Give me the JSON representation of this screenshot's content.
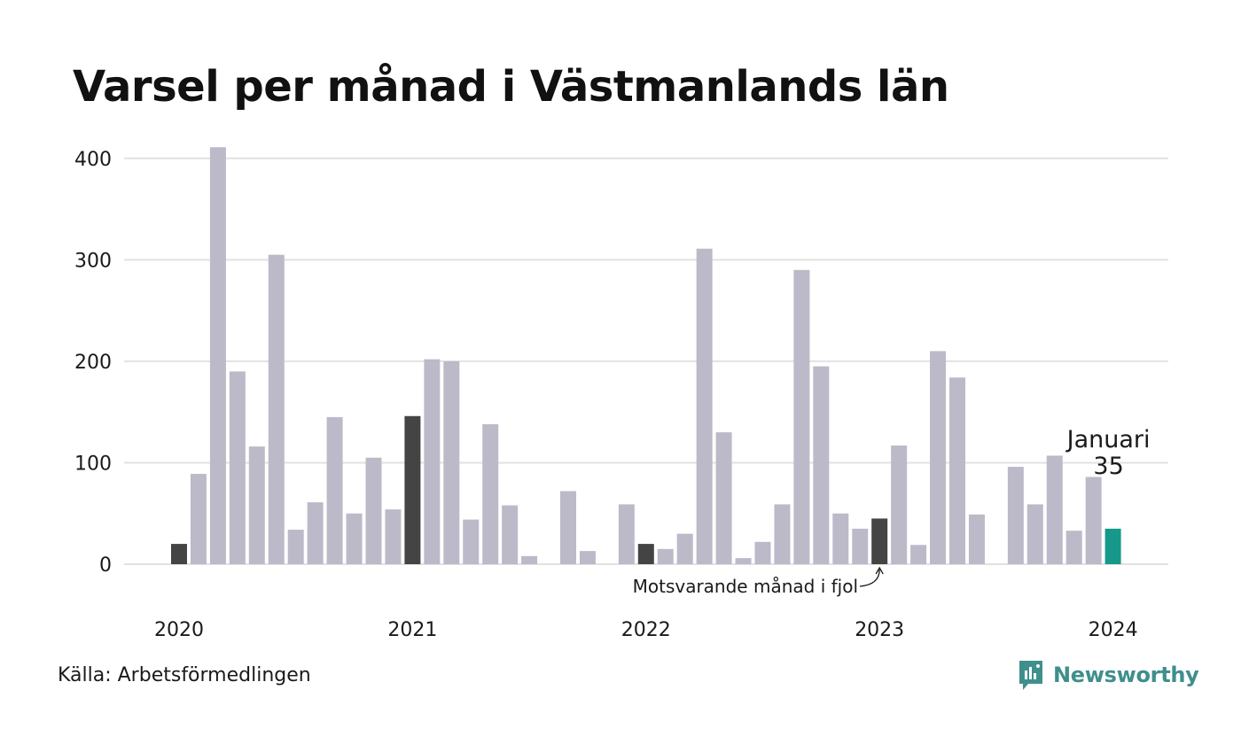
{
  "title": "Varsel per månad i Västmanlands län",
  "source": "Källa: Arbetsförmedlingen",
  "brand": {
    "name": "Newsworthy",
    "icon": "newsworthy-logo-icon",
    "color": "#3f8f8c"
  },
  "colors": {
    "bar": "#bcbac8",
    "highlight": "#444444",
    "current": "#16998a",
    "grid": "#e2e2e2",
    "text": "#1a1a1a"
  },
  "chart_data": {
    "type": "bar",
    "title": "Varsel per månad i Västmanlands län",
    "xlabel": "",
    "ylabel": "",
    "ylim": [
      0,
      420
    ],
    "y_ticks": [
      0,
      100,
      200,
      300,
      400
    ],
    "grid": true,
    "x_tick_labels": [
      "2020",
      "2021",
      "2022",
      "2023",
      "2024"
    ],
    "categories": [
      "2020-01",
      "2020-02",
      "2020-03",
      "2020-04",
      "2020-05",
      "2020-06",
      "2020-07",
      "2020-08",
      "2020-09",
      "2020-10",
      "2020-11",
      "2020-12",
      "2021-01",
      "2021-02",
      "2021-03",
      "2021-04",
      "2021-05",
      "2021-06",
      "2021-07",
      "2021-08",
      "2021-09",
      "2021-10",
      "2021-11",
      "2021-12",
      "2022-01",
      "2022-02",
      "2022-03",
      "2022-04",
      "2022-05",
      "2022-06",
      "2022-07",
      "2022-08",
      "2022-09",
      "2022-10",
      "2022-11",
      "2022-12",
      "2023-01",
      "2023-02",
      "2023-03",
      "2023-04",
      "2023-05",
      "2023-06",
      "2023-07",
      "2023-08",
      "2023-09",
      "2023-10",
      "2023-11",
      "2023-12",
      "2024-01"
    ],
    "values": [
      20,
      89,
      411,
      190,
      116,
      305,
      34,
      61,
      145,
      50,
      105,
      54,
      146,
      202,
      200,
      44,
      138,
      58,
      8,
      0,
      72,
      13,
      0,
      59,
      20,
      15,
      30,
      311,
      130,
      6,
      22,
      59,
      290,
      195,
      50,
      35,
      45,
      117,
      19,
      210,
      184,
      49,
      0,
      96,
      59,
      107,
      33,
      86,
      35
    ],
    "highlighted": [
      "2020-01",
      "2021-01",
      "2022-01",
      "2023-01"
    ],
    "current": "2024-01",
    "annotations": {
      "current_label": "Januari",
      "current_value": "35",
      "previous_year_label": "Motsvarande månad i fjol"
    }
  }
}
